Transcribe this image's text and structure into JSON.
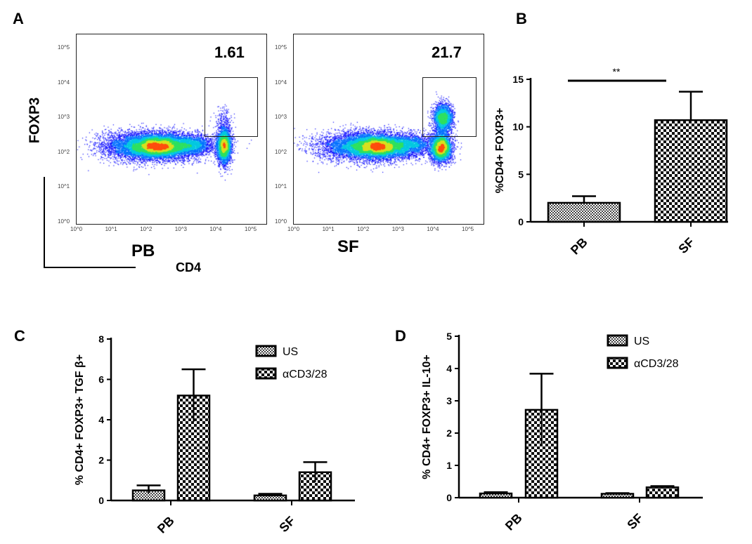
{
  "panel_labels": [
    "A",
    "B",
    "C",
    "D"
  ],
  "panel_a": {
    "y_axis_label": "FOXP3",
    "x_axis_label": "CD4",
    "tick_labels": [
      "10^0",
      "10^1",
      "10^2",
      "10^3",
      "10^4",
      "10^5"
    ],
    "plots": [
      {
        "sample": "PB",
        "gate_percent": "1.61"
      },
      {
        "sample": "SF",
        "gate_percent": "21.7"
      }
    ]
  },
  "chart_data": [
    {
      "panel": "B",
      "type": "bar",
      "categories": [
        "PB",
        "SF"
      ],
      "series": [
        {
          "values": [
            2.0,
            10.7
          ],
          "error_upper": [
            2.7,
            13.7
          ]
        }
      ],
      "ylabel": "%CD4+ FOXP3+",
      "ylim": [
        0,
        15
      ],
      "yticks": [
        0,
        5,
        10,
        15
      ],
      "annotation": "**"
    },
    {
      "panel": "C",
      "type": "bar",
      "categories": [
        "PB",
        "SF"
      ],
      "series": [
        {
          "name": "US",
          "values": [
            0.5,
            0.25
          ],
          "error_upper": [
            0.75,
            0.33
          ],
          "error_lower": [
            0.35,
            0.2
          ]
        },
        {
          "name": "αCD3/28",
          "values": [
            5.2,
            1.4
          ],
          "error_upper": [
            6.5,
            1.9
          ],
          "error_lower": [
            3.9,
            0.9
          ]
        }
      ],
      "ylabel": "% CD4+ FOXP3+ TGF β+",
      "ylim": [
        0,
        8
      ],
      "yticks": [
        0,
        2,
        4,
        6,
        8
      ],
      "legend": "top-right"
    },
    {
      "panel": "D",
      "type": "bar",
      "categories": [
        "PB",
        "SF"
      ],
      "series": [
        {
          "name": "US",
          "values": [
            0.13,
            0.12
          ],
          "error_upper": [
            0.17,
            0.14
          ],
          "error_lower": [
            0.1,
            0.1
          ]
        },
        {
          "name": "αCD3/28",
          "values": [
            2.72,
            0.32
          ],
          "error_upper": [
            3.84,
            0.36
          ],
          "error_lower": [
            1.6,
            0.28
          ]
        }
      ],
      "ylabel": "% CD4+ FOXP3+ IL-10+",
      "ylim": [
        0,
        5
      ],
      "yticks": [
        0,
        1,
        2,
        3,
        4,
        5
      ],
      "legend": "top-right"
    }
  ]
}
